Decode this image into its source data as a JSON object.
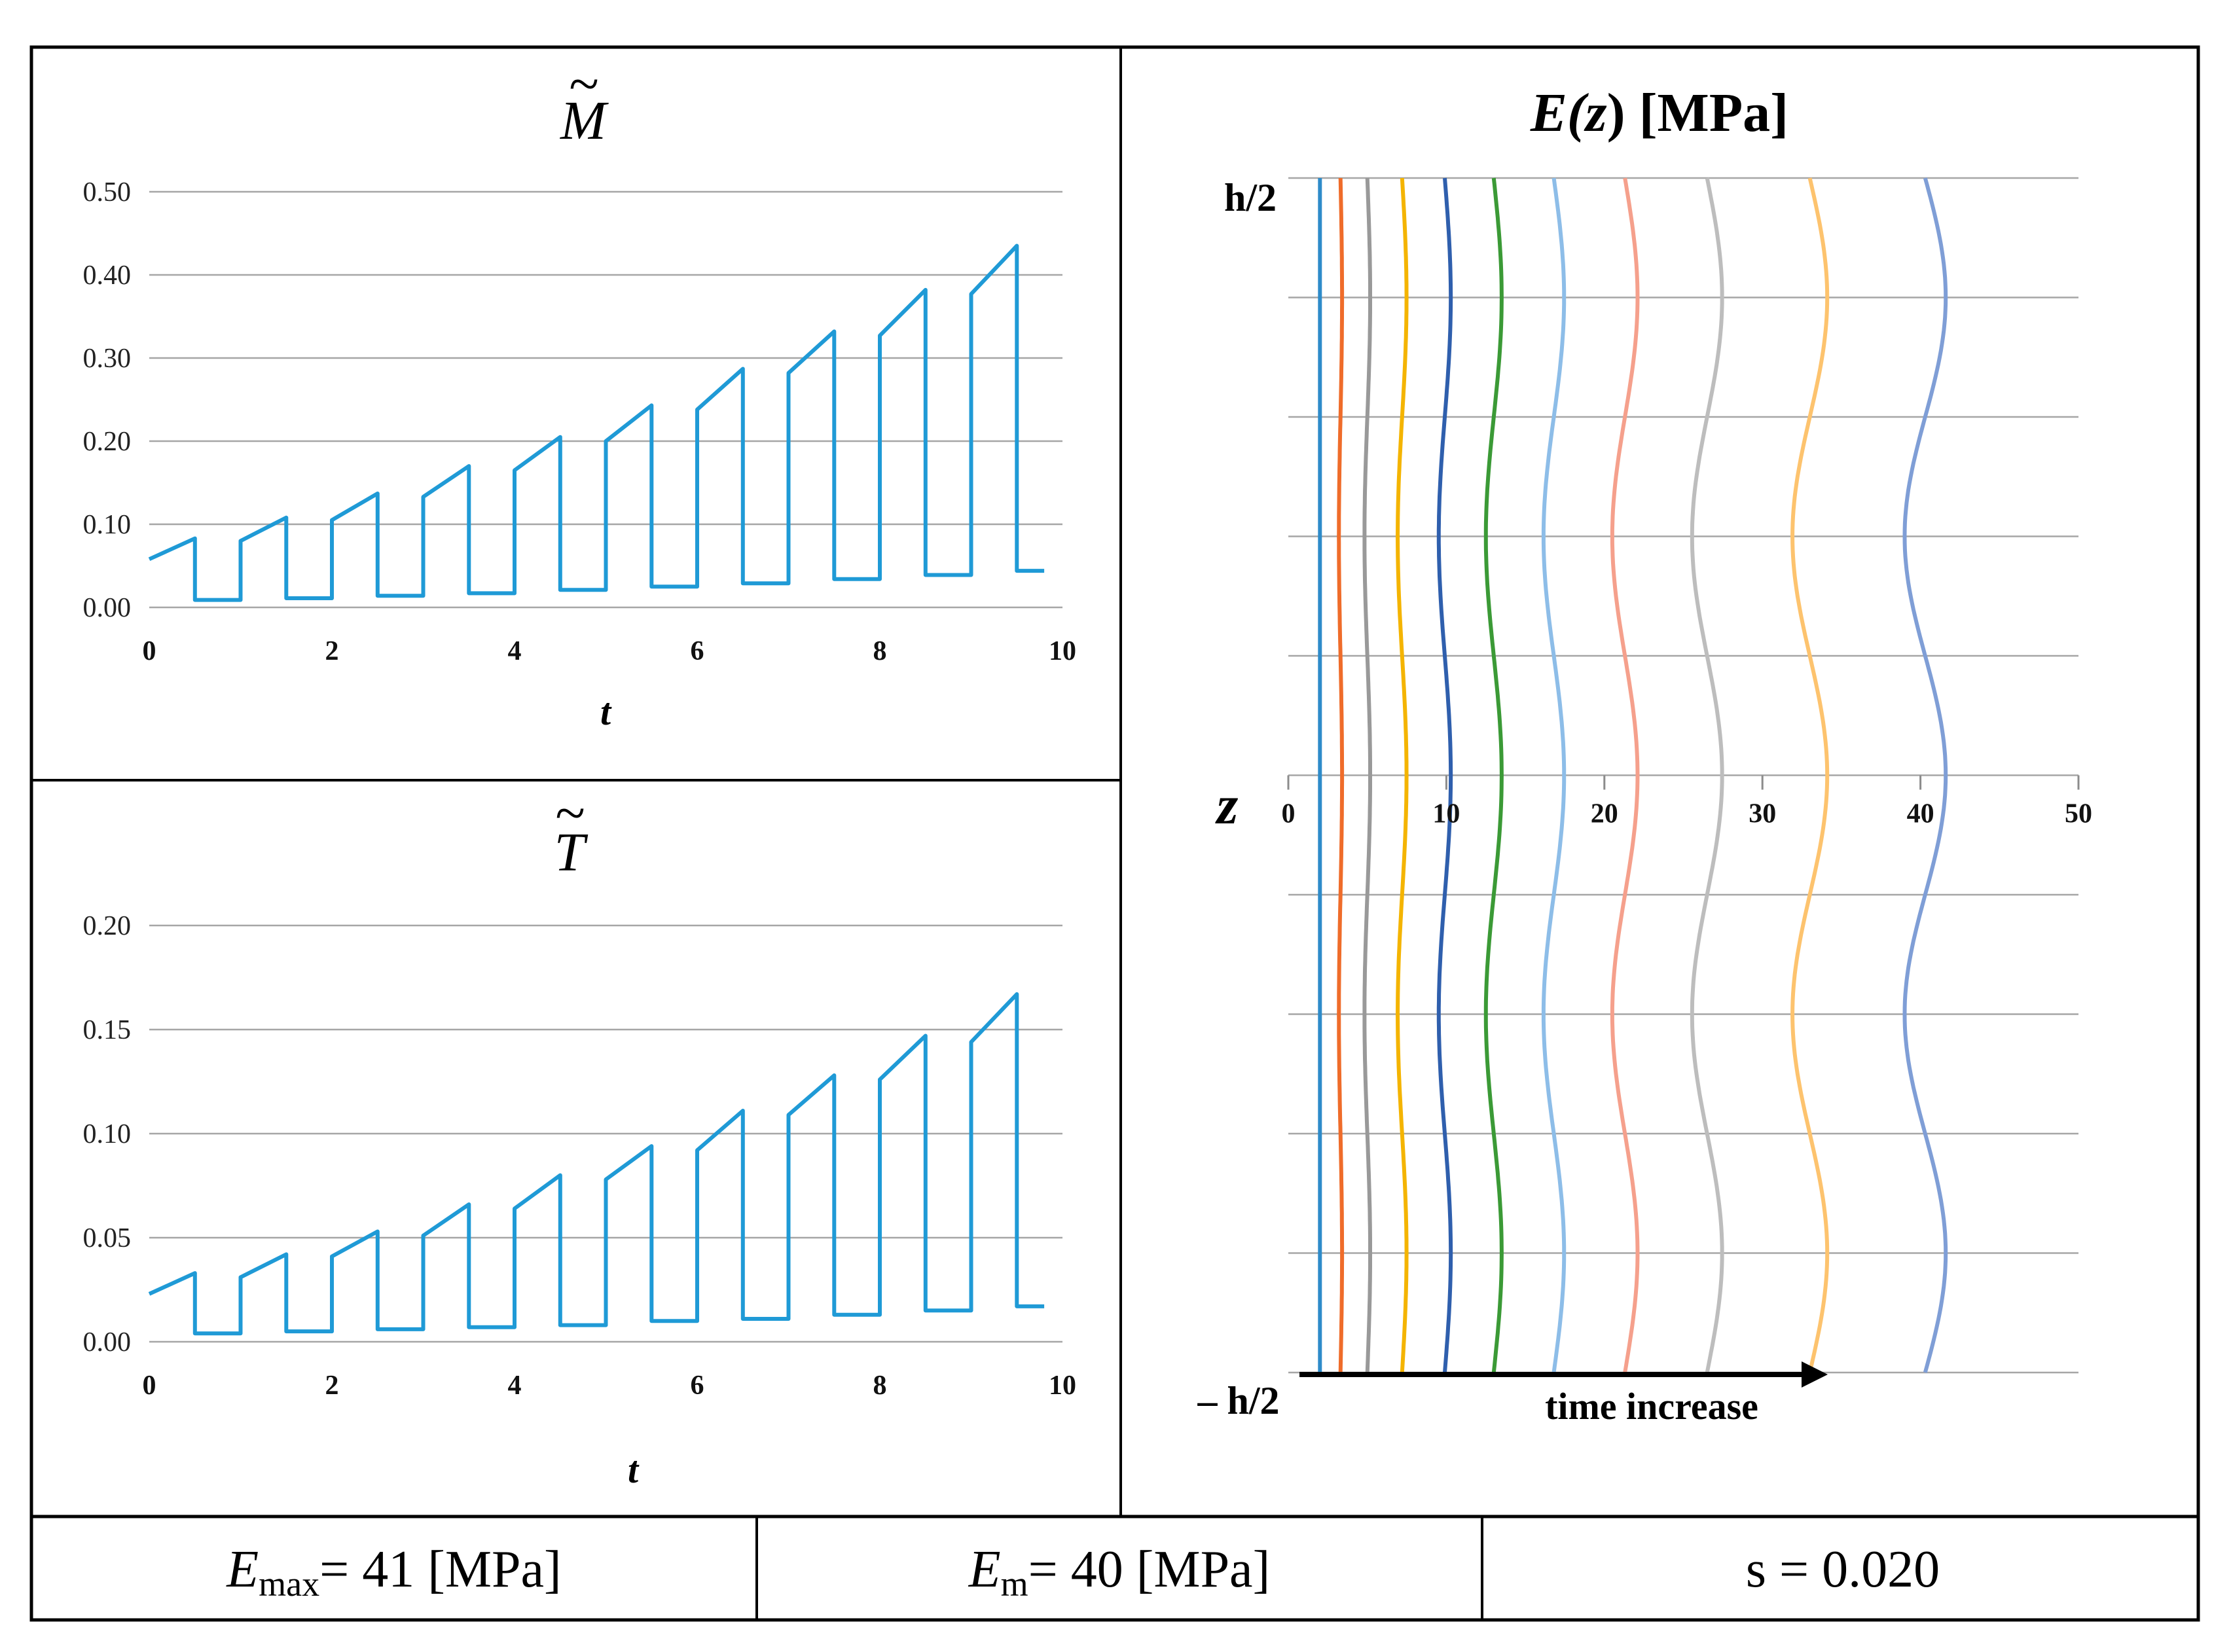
{
  "chart_data": [
    {
      "type": "line",
      "title": "M",
      "title_accent": "~",
      "xlabel": "t",
      "ylabel": "",
      "xlim": [
        0,
        10
      ],
      "ylim": [
        0,
        0.5
      ],
      "xticks": [
        "0",
        "2",
        "4",
        "6",
        "8",
        "10"
      ],
      "yticks": [
        "0.00",
        "0.10",
        "0.20",
        "0.30",
        "0.40",
        "0.50"
      ],
      "color": "#1f9ad6",
      "series": [
        {
          "name": "M",
          "x": [
            0,
            0.5,
            0.5,
            1.0,
            1.0,
            1.5,
            1.5,
            2.0,
            2.0,
            2.5,
            2.5,
            3.0,
            3.0,
            3.5,
            3.5,
            4.0,
            4.0,
            4.5,
            4.5,
            5.0,
            5.0,
            5.5,
            5.5,
            6.0,
            6.0,
            6.5,
            6.5,
            7.0,
            7.0,
            7.5,
            7.5,
            8.0,
            8.0,
            8.5,
            8.5,
            9.0,
            9.0,
            9.5,
            9.5,
            9.8
          ],
          "values": [
            0.058,
            0.083,
            0.009,
            0.009,
            0.08,
            0.108,
            0.011,
            0.011,
            0.105,
            0.137,
            0.014,
            0.014,
            0.133,
            0.17,
            0.017,
            0.017,
            0.165,
            0.205,
            0.021,
            0.021,
            0.2,
            0.243,
            0.025,
            0.025,
            0.238,
            0.287,
            0.029,
            0.029,
            0.282,
            0.332,
            0.034,
            0.034,
            0.327,
            0.382,
            0.039,
            0.039,
            0.377,
            0.435,
            0.044,
            0.044
          ]
        }
      ]
    },
    {
      "type": "line",
      "title": "T",
      "title_accent": "~",
      "xlabel": "t",
      "ylabel": "",
      "xlim": [
        0,
        10
      ],
      "ylim": [
        0,
        0.2
      ],
      "xticks": [
        "0",
        "2",
        "4",
        "6",
        "8",
        "10"
      ],
      "yticks": [
        "0.00",
        "0.05",
        "0.10",
        "0.15",
        "0.20"
      ],
      "color": "#1f9ad6",
      "series": [
        {
          "name": "T",
          "x": [
            0,
            0.5,
            0.5,
            1.0,
            1.0,
            1.5,
            1.5,
            2.0,
            2.0,
            2.5,
            2.5,
            3.0,
            3.0,
            3.5,
            3.5,
            4.0,
            4.0,
            4.5,
            4.5,
            5.0,
            5.0,
            5.5,
            5.5,
            6.0,
            6.0,
            6.5,
            6.5,
            7.0,
            7.0,
            7.5,
            7.5,
            8.0,
            8.0,
            8.5,
            8.5,
            9.0,
            9.0,
            9.5,
            9.5,
            9.8
          ],
          "values": [
            0.023,
            0.033,
            0.004,
            0.004,
            0.031,
            0.042,
            0.005,
            0.005,
            0.041,
            0.053,
            0.006,
            0.006,
            0.051,
            0.066,
            0.007,
            0.007,
            0.064,
            0.08,
            0.008,
            0.008,
            0.078,
            0.094,
            0.01,
            0.01,
            0.092,
            0.111,
            0.011,
            0.011,
            0.109,
            0.128,
            0.013,
            0.013,
            0.126,
            0.147,
            0.015,
            0.015,
            0.144,
            0.167,
            0.017,
            0.017
          ]
        }
      ]
    },
    {
      "type": "line",
      "title_prefix": "E(",
      "title_var": "z",
      "title_suffix": ") [MPa]",
      "ylabel": "z",
      "xlim": [
        0,
        50
      ],
      "ylim": [
        -0.5,
        0.5
      ],
      "xticks": [
        "0",
        "10",
        "20",
        "30",
        "40",
        "50"
      ],
      "y_top_label": "h/2",
      "y_bottom_label": "– h/2",
      "annotation": "time increase",
      "series": [
        {
          "name": "E1",
          "base": 2.0,
          "amplitude": 0.0,
          "color": "#2e8bc9"
        },
        {
          "name": "E2",
          "base": 3.3,
          "amplitude": 0.1,
          "color": "#ef6c2a"
        },
        {
          "name": "E3",
          "base": 5.0,
          "amplitude": 0.18,
          "color": "#999999"
        },
        {
          "name": "E4",
          "base": 7.2,
          "amplitude": 0.28,
          "color": "#f4b400"
        },
        {
          "name": "E5",
          "base": 9.9,
          "amplitude": 0.38,
          "color": "#2f5fad"
        },
        {
          "name": "E6",
          "base": 13.0,
          "amplitude": 0.5,
          "color": "#3b9a36"
        },
        {
          "name": "E7",
          "base": 16.8,
          "amplitude": 0.65,
          "color": "#8dbde8"
        },
        {
          "name": "E8",
          "base": 21.3,
          "amplitude": 0.8,
          "color": "#f5a08c"
        },
        {
          "name": "E9",
          "base": 26.5,
          "amplitude": 0.95,
          "color": "#bdbdbd"
        },
        {
          "name": "E10",
          "base": 33.0,
          "amplitude": 1.1,
          "color": "#fdc36e"
        },
        {
          "name": "E11",
          "base": 40.3,
          "amplitude": 1.3,
          "color": "#7f9ed6"
        }
      ]
    }
  ],
  "footer": {
    "emax_symbol": "E",
    "emax_sub": "max",
    "emax_value": "= 41 [MPa]",
    "em_symbol": "E",
    "em_sub": "m",
    "em_value": "= 40 [MPa]",
    "s_text": "s = 0.020"
  }
}
